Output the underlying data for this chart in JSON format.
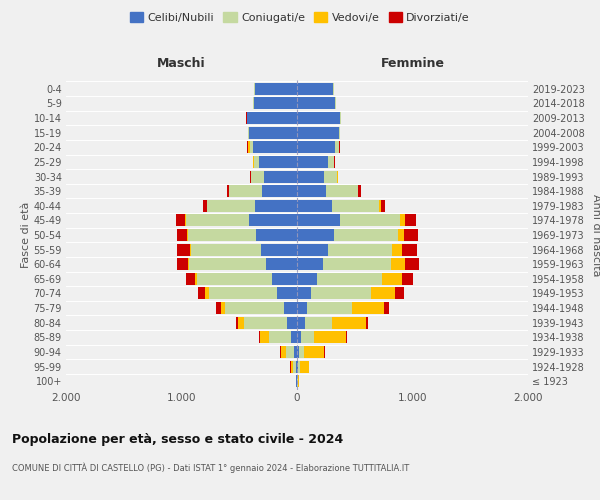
{
  "age_groups": [
    "100+",
    "95-99",
    "90-94",
    "85-89",
    "80-84",
    "75-79",
    "70-74",
    "65-69",
    "60-64",
    "55-59",
    "50-54",
    "45-49",
    "40-44",
    "35-39",
    "30-34",
    "25-29",
    "20-24",
    "15-19",
    "10-14",
    "5-9",
    "0-4"
  ],
  "birth_years": [
    "≤ 1923",
    "1924-1928",
    "1929-1933",
    "1934-1938",
    "1939-1943",
    "1944-1948",
    "1949-1953",
    "1954-1958",
    "1959-1963",
    "1964-1968",
    "1969-1973",
    "1974-1978",
    "1979-1983",
    "1984-1988",
    "1989-1993",
    "1994-1998",
    "1999-2003",
    "2004-2008",
    "2009-2013",
    "2014-2018",
    "2019-2023"
  ],
  "maschi": {
    "celibi": [
      5,
      12,
      25,
      55,
      85,
      110,
      175,
      215,
      265,
      310,
      355,
      415,
      360,
      305,
      285,
      325,
      385,
      415,
      430,
      375,
      365
    ],
    "coniugati": [
      3,
      25,
      70,
      190,
      370,
      510,
      590,
      650,
      670,
      610,
      590,
      550,
      420,
      280,
      115,
      45,
      25,
      5,
      5,
      5,
      5
    ],
    "vedovi": [
      2,
      18,
      45,
      75,
      55,
      35,
      28,
      18,
      8,
      4,
      4,
      4,
      3,
      2,
      2,
      8,
      18,
      2,
      2,
      2,
      2
    ],
    "divorziati": [
      0,
      2,
      5,
      10,
      15,
      48,
      68,
      78,
      98,
      118,
      88,
      78,
      28,
      18,
      8,
      4,
      4,
      2,
      2,
      2,
      2
    ]
  },
  "femmine": {
    "nubili": [
      4,
      8,
      18,
      35,
      65,
      85,
      125,
      172,
      222,
      272,
      322,
      372,
      302,
      252,
      232,
      272,
      332,
      362,
      372,
      332,
      312
    ],
    "coniugate": [
      2,
      18,
      45,
      115,
      242,
      392,
      512,
      562,
      592,
      552,
      552,
      522,
      412,
      272,
      115,
      45,
      28,
      8,
      5,
      5,
      5
    ],
    "vedove": [
      8,
      78,
      175,
      272,
      292,
      272,
      215,
      175,
      125,
      85,
      55,
      38,
      12,
      8,
      4,
      4,
      4,
      2,
      2,
      2,
      2
    ],
    "divorziate": [
      0,
      4,
      8,
      12,
      18,
      48,
      78,
      98,
      118,
      128,
      118,
      98,
      38,
      18,
      8,
      4,
      4,
      2,
      2,
      2,
      2
    ]
  },
  "colors": {
    "celibi": "#4472c4",
    "coniugati": "#c5d9a0",
    "vedovi": "#ffc000",
    "divorziati": "#cc0000"
  },
  "xlim": 2000,
  "title": "Popolazione per età, sesso e stato civile - 2024",
  "subtitle": "COMUNE DI CITTÀ DI CASTELLO (PG) - Dati ISTAT 1° gennaio 2024 - Elaborazione TUTTITALIA.IT",
  "ylabel": "Fasce di età",
  "ylabel_right": "Anni di nascita",
  "xlabel_maschi": "Maschi",
  "xlabel_femmine": "Femmine",
  "legend_labels": [
    "Celibi/Nubili",
    "Coniugati/e",
    "Vedovi/e",
    "Divorziati/e"
  ],
  "background_color": "#f0f0f0"
}
